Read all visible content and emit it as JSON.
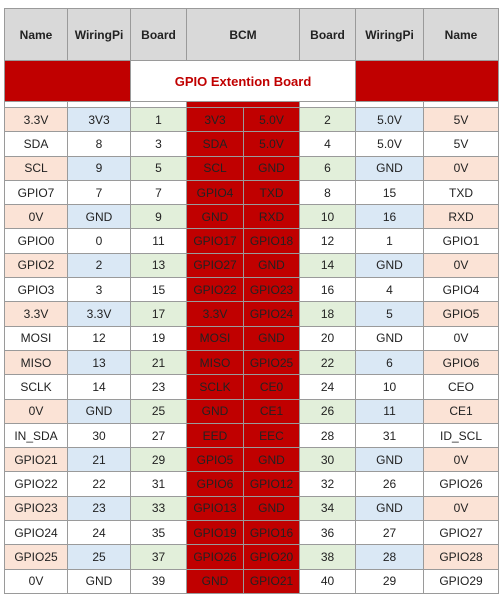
{
  "header": {
    "name_left": "Name",
    "wiringpi_left": "WiringPi",
    "board_left": "Board",
    "bcm": "BCM",
    "board_right": "Board",
    "wiringpi_right": "WiringPi",
    "name_right": "Name"
  },
  "title": "GPIO Extention Board",
  "colors": {
    "accent_red": "#c00000",
    "pink": "#fbe3d6",
    "blue": "#dae8f5",
    "green": "#e2efda",
    "header_gray": "#d9d9d9"
  },
  "rows": [
    {
      "ln": "3.3V",
      "lw": "3V3",
      "lb": "1",
      "bl": "3V3",
      "br": "5.0V",
      "rb": "2",
      "rw": "5.0V",
      "rn": "5V"
    },
    {
      "ln": "SDA",
      "lw": "8",
      "lb": "3",
      "bl": "SDA",
      "br": "5.0V",
      "rb": "4",
      "rw": "5.0V",
      "rn": "5V"
    },
    {
      "ln": "SCL",
      "lw": "9",
      "lb": "5",
      "bl": "SCL",
      "br": "GND",
      "rb": "6",
      "rw": "GND",
      "rn": "0V"
    },
    {
      "ln": "GPIO7",
      "lw": "7",
      "lb": "7",
      "bl": "GPIO4",
      "br": "TXD",
      "rb": "8",
      "rw": "15",
      "rn": "TXD"
    },
    {
      "ln": "0V",
      "lw": "GND",
      "lb": "9",
      "bl": "GND",
      "br": "RXD",
      "rb": "10",
      "rw": "16",
      "rn": "RXD"
    },
    {
      "ln": "GPIO0",
      "lw": "0",
      "lb": "11",
      "bl": "GPIO17",
      "br": "GPIO18",
      "rb": "12",
      "rw": "1",
      "rn": "GPIO1"
    },
    {
      "ln": "GPIO2",
      "lw": "2",
      "lb": "13",
      "bl": "GPIO27",
      "br": "GND",
      "rb": "14",
      "rw": "GND",
      "rn": "0V"
    },
    {
      "ln": "GPIO3",
      "lw": "3",
      "lb": "15",
      "bl": "GPIO22",
      "br": "GPIO23",
      "rb": "16",
      "rw": "4",
      "rn": "GPIO4"
    },
    {
      "ln": "3.3V",
      "lw": "3.3V",
      "lb": "17",
      "bl": "3.3V",
      "br": "GPIO24",
      "rb": "18",
      "rw": "5",
      "rn": "GPIO5"
    },
    {
      "ln": "MOSI",
      "lw": "12",
      "lb": "19",
      "bl": "MOSI",
      "br": "GND",
      "rb": "20",
      "rw": "GND",
      "rn": "0V"
    },
    {
      "ln": "MISO",
      "lw": "13",
      "lb": "21",
      "bl": "MISO",
      "br": "GPIO25",
      "rb": "22",
      "rw": "6",
      "rn": "GPIO6"
    },
    {
      "ln": "SCLK",
      "lw": "14",
      "lb": "23",
      "bl": "SCLK",
      "br": "CE0",
      "rb": "24",
      "rw": "10",
      "rn": "CEO"
    },
    {
      "ln": "0V",
      "lw": "GND",
      "lb": "25",
      "bl": "GND",
      "br": "CE1",
      "rb": "26",
      "rw": "11",
      "rn": "CE1"
    },
    {
      "ln": "IN_SDA",
      "lw": "30",
      "lb": "27",
      "bl": "EED",
      "br": "EEC",
      "rb": "28",
      "rw": "31",
      "rn": "ID_SCL"
    },
    {
      "ln": "GPIO21",
      "lw": "21",
      "lb": "29",
      "bl": "GPIO5",
      "br": "GND",
      "rb": "30",
      "rw": "GND",
      "rn": "0V"
    },
    {
      "ln": "GPIO22",
      "lw": "22",
      "lb": "31",
      "bl": "GPIO6",
      "br": "GPIO12",
      "rb": "32",
      "rw": "26",
      "rn": "GPIO26"
    },
    {
      "ln": "GPIO23",
      "lw": "23",
      "lb": "33",
      "bl": "GPIO13",
      "br": "GND",
      "rb": "34",
      "rw": "GND",
      "rn": "0V"
    },
    {
      "ln": "GPIO24",
      "lw": "24",
      "lb": "35",
      "bl": "GPIO19",
      "br": "GPIO16",
      "rb": "36",
      "rw": "27",
      "rn": "GPIO27"
    },
    {
      "ln": "GPIO25",
      "lw": "25",
      "lb": "37",
      "bl": "GPIO26",
      "br": "GPIO20",
      "rb": "38",
      "rw": "28",
      "rn": "GPIO28"
    },
    {
      "ln": "0V",
      "lw": "GND",
      "lb": "39",
      "bl": "GND",
      "br": "GPIO21",
      "rb": "40",
      "rw": "29",
      "rn": "GPIO29"
    }
  ]
}
